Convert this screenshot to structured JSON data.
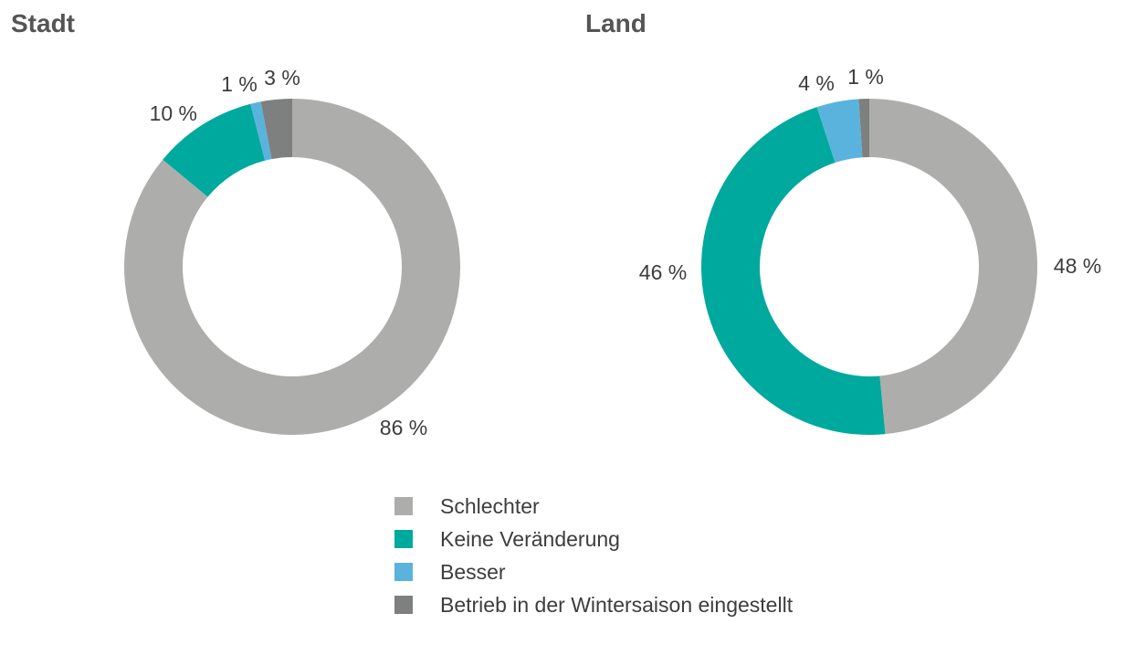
{
  "colors": {
    "schlechter": "#adaeab",
    "keine_veraenderung": "#00a99d",
    "besser": "#5ab3dd",
    "eingestellt": "#7e807f"
  },
  "legend": [
    {
      "label": "Schlechter",
      "key": "schlechter"
    },
    {
      "label": "Keine Veränderung",
      "key": "keine_veraenderung"
    },
    {
      "label": "Besser",
      "key": "besser"
    },
    {
      "label": "Betrieb in der Wintersaison eingestellt",
      "key": "eingestellt"
    }
  ],
  "chart_data": [
    {
      "type": "pie",
      "title": "Stadt",
      "slices": [
        {
          "key": "schlechter",
          "value": 86,
          "label": "86 %"
        },
        {
          "key": "keine_veraenderung",
          "value": 10,
          "label": "10 %"
        },
        {
          "key": "besser",
          "value": 1,
          "label": "1 %"
        },
        {
          "key": "eingestellt",
          "value": 3,
          "label": "3 %"
        }
      ]
    },
    {
      "type": "pie",
      "title": "Land",
      "slices": [
        {
          "key": "schlechter",
          "value": 48,
          "label": "48 %"
        },
        {
          "key": "keine_veraenderung",
          "value": 46,
          "label": "46 %"
        },
        {
          "key": "besser",
          "value": 4,
          "label": "4 %"
        },
        {
          "key": "eingestellt",
          "value": 1,
          "label": "1 %"
        }
      ]
    }
  ]
}
